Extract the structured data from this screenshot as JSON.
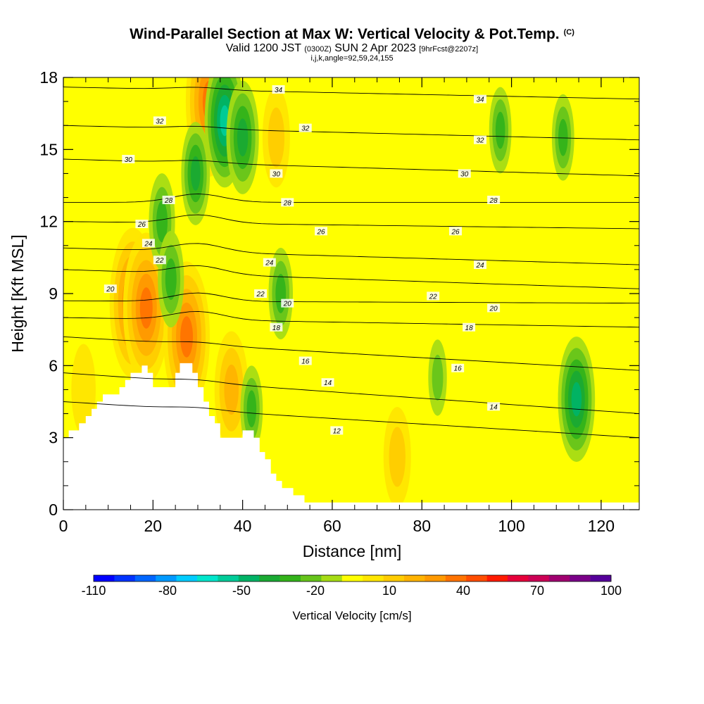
{
  "header": {
    "title": "Wind-Parallel Section at Max W: Vertical Velocity & Pot.Temp.",
    "title_suffix": "(C)",
    "valid_main": "Valid 1200 JST",
    "valid_z": "(0300Z)",
    "valid_date": "SUN 2 Apr 2023",
    "forecast": "[9hrFcst@2207z]",
    "indices": "i,j,k,angle=92,59,24,155"
  },
  "chart_data": {
    "type": "heatmap",
    "xlabel": "Distance [nm]",
    "ylabel": "Height [Kft MSL]",
    "xlim": [
      0,
      128.5
    ],
    "ylim": [
      0,
      18
    ],
    "xticks": [
      0,
      20,
      40,
      60,
      80,
      100,
      120
    ],
    "yticks": [
      0,
      3,
      6,
      9,
      12,
      15,
      18
    ],
    "colorbar": {
      "label": "Vertical Velocity [cm/s]",
      "tick_labels": [
        "-110",
        "-80",
        "-50",
        "-20",
        "10",
        "40",
        "70",
        "100"
      ],
      "min": -110,
      "max": 100,
      "step": 10,
      "colors": [
        "#0000ff",
        "#0033ff",
        "#0066ff",
        "#0099ff",
        "#00ccff",
        "#00e6cc",
        "#00cc99",
        "#00b366",
        "#1aaa33",
        "#33b31a",
        "#66c41a",
        "#a6dc14",
        "#ffff00",
        "#ffe600",
        "#ffcc00",
        "#ffb300",
        "#ff9900",
        "#ff7300",
        "#ff4d00",
        "#ff1a00",
        "#e6003a",
        "#cc0055",
        "#a00070",
        "#7a0088",
        "#55009a"
      ]
    },
    "theta_levels": [
      {
        "theta": 12,
        "z_left": 4.5,
        "z_right": 3.0
      },
      {
        "theta": 14,
        "z_left": 5.7,
        "z_right": 4.0
      },
      {
        "theta": 16,
        "z_left": 7.2,
        "z_right": 5.8
      },
      {
        "theta": 18,
        "z_left": 8.0,
        "z_right": 7.6
      },
      {
        "theta": 20,
        "z_left": 8.7,
        "z_right": 8.6
      },
      {
        "theta": 22,
        "z_left": 10.0,
        "z_right": 9.2
      },
      {
        "theta": 24,
        "z_left": 10.9,
        "z_right": 10.2
      },
      {
        "theta": 26,
        "z_left": 12.0,
        "z_right": 11.7
      },
      {
        "theta": 28,
        "z_left": 12.8,
        "z_right": 12.8
      },
      {
        "theta": 30,
        "z_left": 14.6,
        "z_right": 13.9
      },
      {
        "theta": 32,
        "z_left": 16.0,
        "z_right": 15.4
      },
      {
        "theta": 34,
        "z_left": 17.6,
        "z_right": 17.1
      }
    ],
    "contour_labels": [
      {
        "text": "34",
        "x": 48,
        "z": 17.5
      },
      {
        "text": "34",
        "x": 93,
        "z": 17.1
      },
      {
        "text": "32",
        "x": 21.5,
        "z": 16.2
      },
      {
        "text": "32",
        "x": 54,
        "z": 15.9
      },
      {
        "text": "32",
        "x": 93,
        "z": 15.4
      },
      {
        "text": "30",
        "x": 14.5,
        "z": 14.6
      },
      {
        "text": "30",
        "x": 47.5,
        "z": 14.0
      },
      {
        "text": "30",
        "x": 89.5,
        "z": 14.0
      },
      {
        "text": "28",
        "x": 23.5,
        "z": 12.9
      },
      {
        "text": "28",
        "x": 50,
        "z": 12.8
      },
      {
        "text": "28",
        "x": 96,
        "z": 12.9
      },
      {
        "text": "26",
        "x": 17.5,
        "z": 11.9
      },
      {
        "text": "26",
        "x": 57.5,
        "z": 11.6
      },
      {
        "text": "26",
        "x": 87.5,
        "z": 11.6
      },
      {
        "text": "24",
        "x": 19,
        "z": 11.1
      },
      {
        "text": "24",
        "x": 46,
        "z": 10.3
      },
      {
        "text": "24",
        "x": 93,
        "z": 10.2
      },
      {
        "text": "22",
        "x": 21.5,
        "z": 10.4
      },
      {
        "text": "22",
        "x": 44,
        "z": 9.0
      },
      {
        "text": "22",
        "x": 82.5,
        "z": 8.9
      },
      {
        "text": "20",
        "x": 10.5,
        "z": 9.2
      },
      {
        "text": "20",
        "x": 50,
        "z": 8.6
      },
      {
        "text": "20",
        "x": 96,
        "z": 8.4
      },
      {
        "text": "18",
        "x": 47.5,
        "z": 7.6
      },
      {
        "text": "18",
        "x": 90.5,
        "z": 7.6
      },
      {
        "text": "16",
        "x": 54,
        "z": 6.2
      },
      {
        "text": "16",
        "x": 88,
        "z": 5.9
      },
      {
        "text": "14",
        "x": 59,
        "z": 5.3
      },
      {
        "text": "14",
        "x": 96,
        "z": 4.3
      },
      {
        "text": "12",
        "x": 61,
        "z": 3.3
      }
    ],
    "terrain": [
      [
        0,
        3.0
      ],
      [
        1.2,
        3.0
      ],
      [
        1.2,
        3.3
      ],
      [
        3.5,
        3.3
      ],
      [
        3.5,
        3.6
      ],
      [
        5,
        3.6
      ],
      [
        5,
        3.9
      ],
      [
        6.3,
        3.9
      ],
      [
        6.3,
        4.2
      ],
      [
        7.5,
        4.2
      ],
      [
        7.5,
        4.5
      ],
      [
        8.8,
        4.5
      ],
      [
        8.8,
        4.8
      ],
      [
        12.5,
        4.8
      ],
      [
        12.5,
        5.1
      ],
      [
        13.8,
        5.1
      ],
      [
        13.8,
        5.4
      ],
      [
        15,
        5.4
      ],
      [
        15,
        5.7
      ],
      [
        17.5,
        5.7
      ],
      [
        17.5,
        6.0
      ],
      [
        18.8,
        6.0
      ],
      [
        18.8,
        5.7
      ],
      [
        20,
        5.7
      ],
      [
        20,
        5.1
      ],
      [
        25,
        5.1
      ],
      [
        25,
        5.7
      ],
      [
        26,
        5.7
      ],
      [
        26,
        6.1
      ],
      [
        28.8,
        6.1
      ],
      [
        28.8,
        5.7
      ],
      [
        30,
        5.7
      ],
      [
        30,
        5.1
      ],
      [
        31.3,
        5.1
      ],
      [
        31.3,
        4.5
      ],
      [
        32.5,
        4.5
      ],
      [
        32.5,
        3.9
      ],
      [
        33.8,
        3.9
      ],
      [
        33.8,
        3.6
      ],
      [
        35,
        3.6
      ],
      [
        35,
        3.0
      ],
      [
        40,
        3.0
      ],
      [
        40,
        3.3
      ],
      [
        42.5,
        3.3
      ],
      [
        42.5,
        3.0
      ],
      [
        43.8,
        3.0
      ],
      [
        43.8,
        2.4
      ],
      [
        45,
        2.4
      ],
      [
        45,
        2.1
      ],
      [
        46.3,
        2.1
      ],
      [
        46.3,
        1.5
      ],
      [
        47.5,
        1.5
      ],
      [
        47.5,
        1.2
      ],
      [
        48.8,
        1.2
      ],
      [
        48.8,
        0.9
      ],
      [
        51.3,
        0.9
      ],
      [
        51.3,
        0.6
      ],
      [
        53.8,
        0.6
      ],
      [
        53.8,
        0.3
      ],
      [
        128.5,
        0.3
      ],
      [
        128.5,
        0
      ],
      [
        0,
        0
      ]
    ],
    "features": [
      {
        "type": "updraft",
        "x": 15.5,
        "z": 8.6,
        "w": 65
      },
      {
        "type": "updraft",
        "x": 18.5,
        "z": 8.4,
        "w": 62
      },
      {
        "type": "updraft",
        "x": 27.5,
        "z": 7.2,
        "w": 68
      },
      {
        "type": "updraft",
        "x": 32.5,
        "z": 17.0,
        "w": 62
      },
      {
        "type": "updraft",
        "x": 47.5,
        "z": 15.5,
        "w": 30
      },
      {
        "type": "updraft",
        "x": 37.5,
        "z": 5.0,
        "w": 40
      },
      {
        "type": "updraft",
        "x": 74.5,
        "z": 2.2,
        "w": 30
      },
      {
        "type": "updraft",
        "x": 4.5,
        "z": 5.0,
        "w": 25
      },
      {
        "type": "downdraft",
        "x": 36,
        "z": 16.2,
        "w": -50
      },
      {
        "type": "downdraft",
        "x": 40,
        "z": 15.5,
        "w": -38
      },
      {
        "type": "downdraft",
        "x": 29.5,
        "z": 14.0,
        "w": -32
      },
      {
        "type": "downdraft",
        "x": 22,
        "z": 12.0,
        "w": -28
      },
      {
        "type": "downdraft",
        "x": 24,
        "z": 9.6,
        "w": -28
      },
      {
        "type": "downdraft",
        "x": 48.5,
        "z": 9.0,
        "w": -25
      },
      {
        "type": "downdraft",
        "x": 42,
        "z": 4.2,
        "w": -22
      },
      {
        "type": "downdraft",
        "x": 114.5,
        "z": 4.6,
        "w": -45
      },
      {
        "type": "downdraft",
        "x": 111.5,
        "z": 15.5,
        "w": -22
      },
      {
        "type": "downdraft",
        "x": 97.5,
        "z": 15.8,
        "w": -22
      },
      {
        "type": "downdraft",
        "x": 83.5,
        "z": 5.5,
        "w": -16
      }
    ]
  }
}
